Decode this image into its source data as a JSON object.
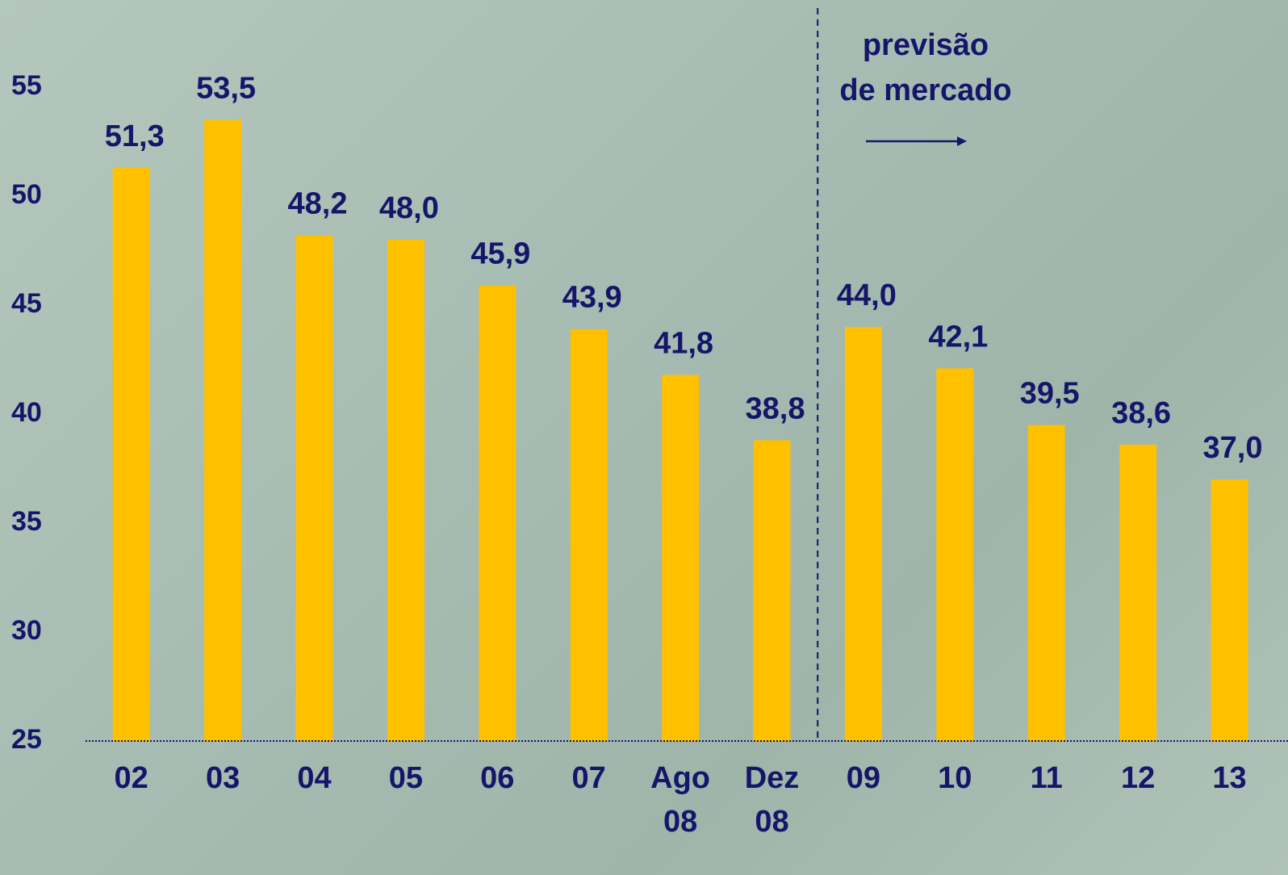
{
  "chart_data": {
    "type": "bar",
    "categories": [
      "02",
      "03",
      "04",
      "05",
      "06",
      "07",
      "Ago 08",
      "Dez 08",
      "09",
      "10",
      "11",
      "12",
      "13"
    ],
    "values": [
      51.3,
      53.5,
      48.2,
      48.0,
      45.9,
      43.9,
      41.8,
      38.8,
      44.0,
      42.1,
      39.5,
      38.6,
      37.0
    ],
    "value_labels": [
      "51,3",
      "53,5",
      "48,2",
      "48,0",
      "45,9",
      "43,9",
      "41,8",
      "38,8",
      "44,0",
      "42,1",
      "39,5",
      "38,6",
      "37,0"
    ],
    "color": "#ffc000",
    "ylim": [
      25,
      59
    ],
    "yticks": [
      25,
      30,
      35,
      40,
      45,
      50,
      55
    ],
    "annotation": [
      "previsão",
      "de mercado"
    ]
  }
}
